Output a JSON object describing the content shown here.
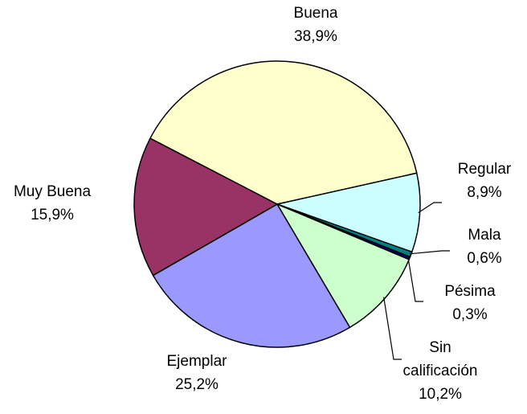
{
  "chart_data": {
    "type": "pie",
    "categories": [
      "Buena",
      "Regular",
      "Mala",
      "Pésima",
      "Sin calificación",
      "Ejemplar",
      "Muy Buena"
    ],
    "values": [
      38.9,
      8.9,
      0.6,
      0.3,
      10.2,
      25.2,
      15.9
    ],
    "value_labels": [
      "38,9%",
      "8,9%",
      "0,6%",
      "0,3%",
      "10,2%",
      "25,2%",
      "15,9%"
    ],
    "colors": [
      "#ffffcc",
      "#ccffff",
      "#008080",
      "#000080",
      "#ccffcc",
      "#9999ff",
      "#993366"
    ]
  }
}
